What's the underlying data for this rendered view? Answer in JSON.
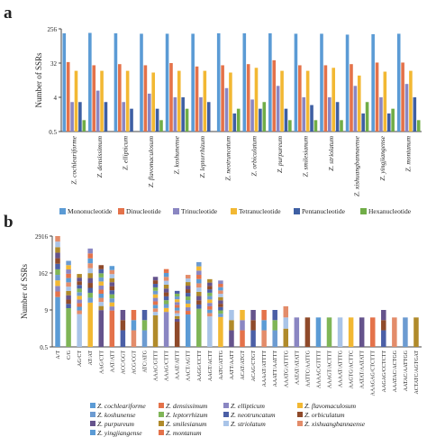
{
  "colors": {
    "Mononucleotide": "#5b9bd5",
    "Dinucleotide": "#e4724a",
    "Trinucleotide": "#8a86c2",
    "Tetranucleotide": "#f2b833",
    "Pentanucleotide": "#3e5fa3",
    "Hexanucleotide": "#70ad47",
    "species_palette": [
      "#5b9bd5",
      "#e4724a",
      "#8a86c2",
      "#f2b833",
      "#6c9bd1",
      "#7fb557",
      "#4b5fa6",
      "#8f4a2a",
      "#65538c",
      "#b08a2a",
      "#a9c4e8",
      "#e38c6a"
    ]
  },
  "chart_data": [
    {
      "panel": "a",
      "type": "bar",
      "ylabel": "Number of SSRs",
      "yscale": "log",
      "yticks": [
        0.5,
        4,
        32,
        256
      ],
      "ytick_labels": [
        "0.5",
        "4",
        "32",
        "256"
      ],
      "ylim": [
        0.5,
        256
      ],
      "categories": [
        "Z. cochleariforme",
        "Z. densissimum",
        "Z. ellipticum",
        "Z. flavomaculosum",
        "Z. koshunense",
        "Z. leptorrhizum",
        "Z. neotruncatum",
        "Z. orbiculatum",
        "Z. purpureum",
        "Z. smilesianum",
        "Z. striolatum",
        "Z. xishuangbannaense",
        "Z. yingjiangense",
        "Z. montanum"
      ],
      "legend_position": "bottom",
      "series": [
        {
          "name": "Mononucleotide",
          "values": [
            195,
            200,
            195,
            190,
            190,
            190,
            195,
            195,
            195,
            190,
            190,
            180,
            185,
            190
          ]
        },
        {
          "name": "Dinucleotide",
          "values": [
            34,
            28,
            30,
            28,
            32,
            26,
            28,
            30,
            38,
            28,
            28,
            30,
            33,
            33
          ]
        },
        {
          "name": "Trinucleotide",
          "values": [
            3,
            6,
            3,
            5,
            4,
            4,
            7,
            3.5,
            8,
            4,
            4,
            8,
            4,
            9
          ]
        },
        {
          "name": "Tetranucleotide",
          "values": [
            20,
            20,
            20,
            18,
            20,
            20,
            18,
            24,
            20,
            20,
            24,
            15,
            19,
            20
          ]
        },
        {
          "name": "Pentanucleotide",
          "values": [
            3,
            3,
            2,
            2,
            4,
            3,
            1.5,
            2,
            2,
            2.5,
            3,
            1.5,
            1.5,
            4
          ]
        },
        {
          "name": "Hexanucleotide",
          "values": [
            1,
            0.5,
            0.5,
            1,
            2,
            0.5,
            2,
            3,
            1,
            1,
            1,
            3,
            2,
            1
          ]
        }
      ]
    },
    {
      "panel": "b",
      "type": "bar",
      "stacked": true,
      "ylabel": "Number of SSRs",
      "yscale": "log",
      "yticks": [
        0.5,
        9,
        162,
        2916
      ],
      "ytick_labels": [
        "0.5",
        "9",
        "162",
        "2916"
      ],
      "ylim": [
        0.5,
        2916
      ],
      "categories": [
        "A/T",
        "C/G",
        "AG/CT",
        "AT/AT",
        "AAG/CTT",
        "AAT/ATT",
        "ACC/GGT",
        "ACG/CGT",
        "ATC/ATG",
        "AAAC/GTTT",
        "AAAG/CTTT",
        "AAAT/ATTT",
        "AACT/AGTT",
        "AAGG/CCTT",
        "AAGT/ACTT",
        "AATC/ATTG",
        "AATT/AATT",
        "ACAT/ATGT",
        "ACAG/CTGT",
        "AAAAT/ATTTT",
        "AAATT/AATTT",
        "AAATG/ATTTG",
        "AATAT/ATATT",
        "AATTC/AATTG",
        "AAAAC/GTTTT",
        "AAAGT/ACTTT",
        "AAAAT/ATTTG",
        "AAGTG/ACTTC",
        "AATAT/AATATT",
        "AAAGAG/CTCTTT",
        "AAGAG/CCTCTT",
        "AAATAC/ACTGG",
        "AATAC/AATTGG",
        "ACTATC/AGTGAT"
      ],
      "totals": [
        2916,
        420,
        150,
        1100,
        300,
        280,
        9,
        9,
        9,
        120,
        220,
        40,
        140,
        380,
        100,
        90,
        9,
        9,
        9,
        9,
        9,
        12,
        5,
        5,
        5,
        5,
        5,
        5,
        5,
        5,
        9,
        5,
        5,
        5
      ],
      "legend_title": "",
      "legend_position": "bottom",
      "legend_entries": [
        "Z. cochleariforme",
        "Z. densissimum",
        "Z. ellipticum",
        "Z. flavomaculosum",
        "Z. koshunense",
        "Z. leptorrhizum",
        "Z. neotruncatum",
        "Z. orbiculatum",
        "Z. purpureum",
        "Z. smilesianum",
        "Z. striolatum",
        "Z. xishuangbannaense",
        "Z. yingjiangense",
        "Z. montanum"
      ]
    }
  ],
  "panel_a_label": "a",
  "panel_b_label": "b"
}
